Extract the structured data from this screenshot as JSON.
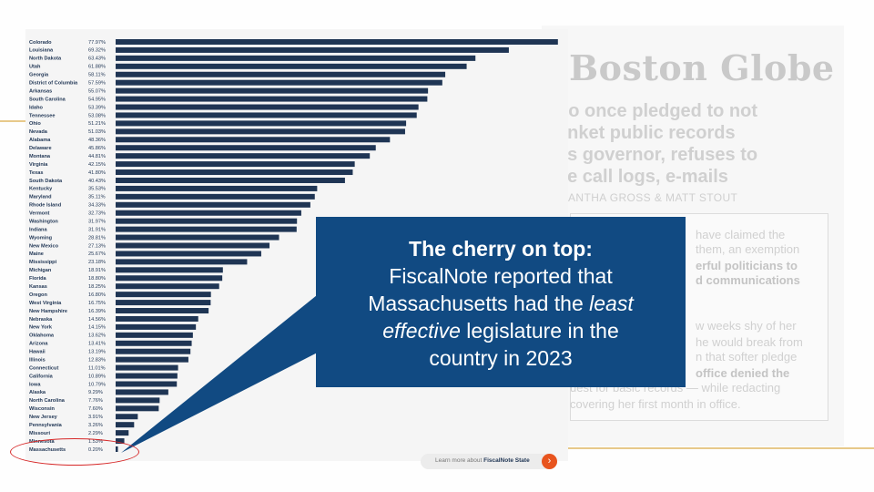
{
  "chart_data": {
    "type": "bar",
    "orientation": "horizontal",
    "categories": [
      "Colorado",
      "Louisiana",
      "North Dakota",
      "Utah",
      "Georgia",
      "District of Columbia",
      "Arkansas",
      "South Carolina",
      "Idaho",
      "Tennessee",
      "Ohio",
      "Nevada",
      "Alabama",
      "Delaware",
      "Montana",
      "Virginia",
      "Texas",
      "South Dakota",
      "Kentucky",
      "Maryland",
      "Rhode Island",
      "Vermont",
      "Washington",
      "Indiana",
      "Wyoming",
      "New Mexico",
      "Maine",
      "Mississippi",
      "Michigan",
      "Florida",
      "Kansas",
      "Oregon",
      "West Virginia",
      "New Hampshire",
      "Nebraska",
      "New York",
      "Oklahoma",
      "Arizona",
      "Hawaii",
      "Illinois",
      "Connecticut",
      "California",
      "Iowa",
      "Alaska",
      "North Carolina",
      "Wisconsin",
      "New Jersey",
      "Pennsylvania",
      "Missouri",
      "Minnesota",
      "Massachusetts"
    ],
    "values": [
      77.97,
      69.32,
      63.43,
      61.88,
      58.11,
      57.59,
      55.07,
      54.95,
      53.39,
      53.08,
      51.21,
      51.03,
      48.36,
      45.86,
      44.81,
      42.15,
      41.8,
      40.43,
      35.53,
      35.11,
      34.33,
      32.73,
      31.97,
      31.91,
      28.81,
      27.13,
      25.67,
      23.18,
      18.91,
      18.8,
      18.25,
      16.8,
      16.75,
      16.39,
      14.56,
      14.15,
      13.62,
      13.41,
      13.19,
      12.83,
      11.01,
      10.89,
      10.79,
      9.29,
      7.76,
      7.6,
      3.91,
      3.26,
      2.29,
      1.53,
      0.2
    ],
    "labels": [
      "77.97%",
      "69.32%",
      "63.43%",
      "61.88%",
      "58.11%",
      "57.59%",
      "55.07%",
      "54.95%",
      "53.39%",
      "53.08%",
      "51.21%",
      "51.03%",
      "48.36%",
      "45.86%",
      "44.81%",
      "42.15%",
      "41.80%",
      "40.43%",
      "35.53%",
      "35.11%",
      "34.33%",
      "32.73%",
      "31.97%",
      "31.91%",
      "28.81%",
      "27.13%",
      "25.67%",
      "23.18%",
      "18.91%",
      "18.80%",
      "18.25%",
      "16.80%",
      "16.75%",
      "16.39%",
      "14.56%",
      "14.15%",
      "13.62%",
      "13.41%",
      "13.19%",
      "12.83%",
      "11.01%",
      "10.89%",
      "10.79%",
      "9.29%",
      "7.76%",
      "7.60%",
      "3.91%",
      "3.26%",
      "2.29%",
      "1.53%",
      "0.20%"
    ],
    "highlight": "Massachusetts",
    "xlim": [
      0,
      78
    ],
    "bar_color": "#1f3554",
    "highlight_ring_color": "#d62828"
  },
  "learn_more": {
    "prefix": "Learn more about",
    "link": "FiscalNote State",
    "arrow": "›"
  },
  "callout": {
    "title": "The cherry on top:",
    "line1": "FiscalNote reported that",
    "line2": "Massachusetts had the",
    "line2_em": "least",
    "line3_em": "effective",
    "line3": "legislature in the",
    "line4": "country in 2023",
    "bg_color": "#114a82"
  },
  "article": {
    "masthead": "Boston Globe",
    "headline": [
      "ho once pledged to not",
      "anket public records",
      "as governor, refuses to",
      "se call logs, e-mails"
    ],
    "byline": "ANTHA GROSS & MATT STOUT",
    "body": [
      {
        "text": "have claimed the",
        "bold": false
      },
      {
        "text": "them, an exemption",
        "bold": false
      },
      {
        "text": "erful politicians to",
        "bold": true
      },
      {
        "text": "d communications",
        "bold": true
      },
      {
        "text": "w weeks shy of her",
        "bold": false
      },
      {
        "text": "he would break from",
        "bold": false
      },
      {
        "text": "n that softer pledge",
        "bold": false
      },
      {
        "text": "office denied the",
        "bold": true
      },
      {
        "text": "uest for basic records — while redacting",
        "bold": false
      },
      {
        "text": "covering her first month in office.",
        "bold": false
      }
    ]
  }
}
